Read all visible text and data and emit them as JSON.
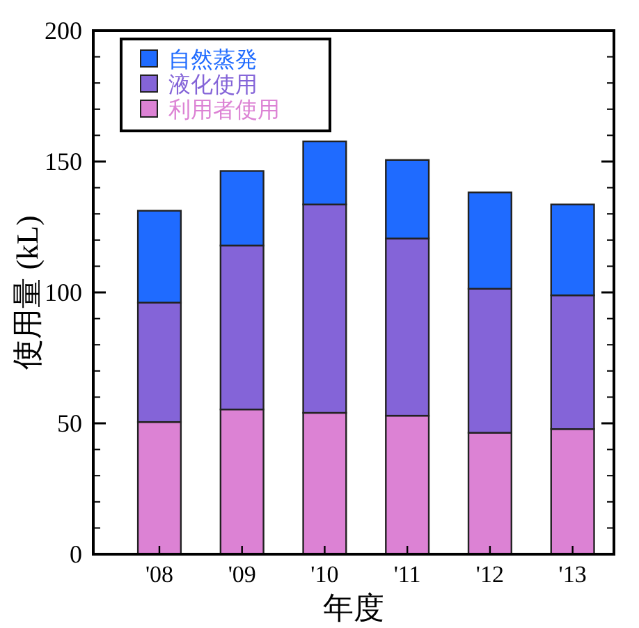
{
  "chart_data": {
    "type": "bar",
    "stacked": true,
    "xlabel": "年度",
    "ylabel": "使用量 (kL)",
    "categories": [
      "'08",
      "'09",
      "'10",
      "'11",
      "'12",
      "'13"
    ],
    "series": [
      {
        "name": "利用者使用",
        "color": "#dc82d4",
        "values": [
          50.5,
          55.3,
          54.0,
          52.9,
          46.4,
          47.8
        ]
      },
      {
        "name": "液化使用",
        "color": "#8464d8",
        "values": [
          45.6,
          62.6,
          79.6,
          67.7,
          55.0,
          51.1
        ]
      },
      {
        "name": "自然蒸発",
        "color": "#1f6bff",
        "values": [
          35.1,
          28.5,
          24.1,
          30.0,
          36.8,
          34.7
        ]
      }
    ],
    "ylim": [
      0,
      200
    ],
    "yticks": [
      0,
      50,
      100,
      150,
      200
    ],
    "legend": "top left"
  }
}
